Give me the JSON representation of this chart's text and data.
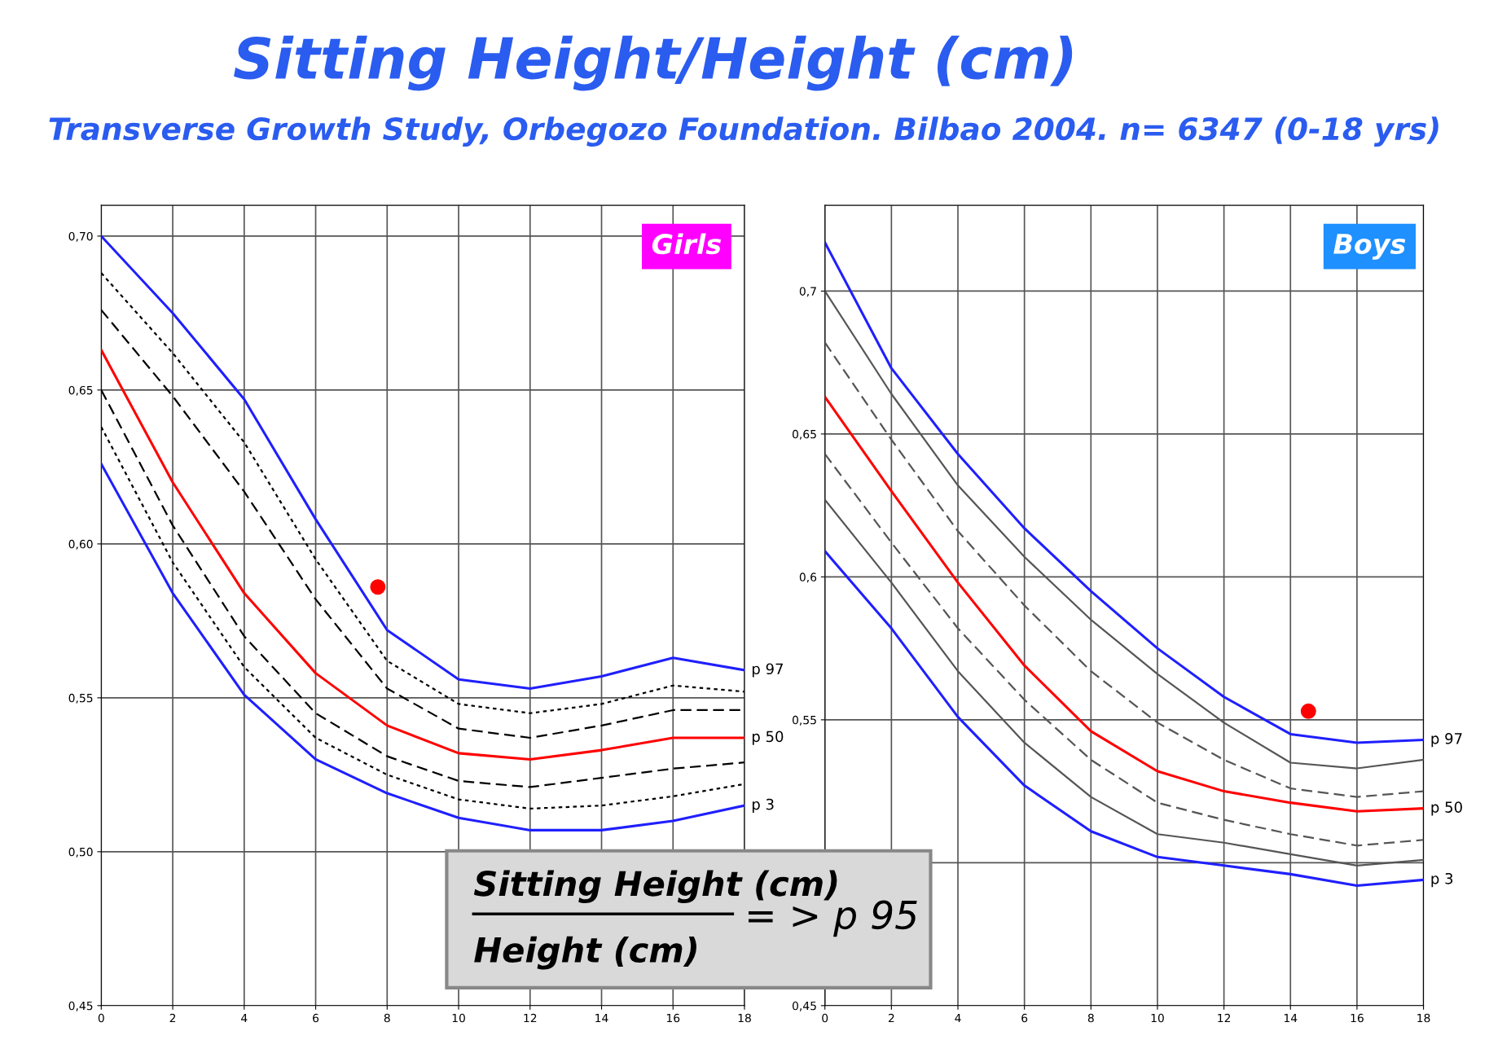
{
  "chart_data": [
    {
      "type": "line",
      "title": "Sitting Height/Height (cm)",
      "subtitle": "Transverse Growth Study, Orbegozo Foundation. Bilbao 2004. n= 6347 (0-18 yrs)",
      "x": [
        0,
        2,
        4,
        6,
        8,
        10,
        12,
        14,
        16,
        18
      ],
      "series": [
        {
          "name": "p 97",
          "color": "#1f1fff",
          "line_style": "solid",
          "values": [
            0.7,
            0.675,
            0.647,
            0.608,
            0.572,
            0.556,
            0.553,
            0.557,
            0.563,
            0.559
          ]
        },
        {
          "color": "#000000",
          "line_style": "dotted",
          "values": [
            0.688,
            0.662,
            0.633,
            0.595,
            0.562,
            0.548,
            0.545,
            0.548,
            0.554,
            0.552
          ]
        },
        {
          "color": "#000000",
          "line_style": "dashed",
          "values": [
            0.676,
            0.648,
            0.617,
            0.582,
            0.553,
            0.54,
            0.537,
            0.541,
            0.546,
            0.546
          ]
        },
        {
          "name": "p 50",
          "color": "#ff0000",
          "line_style": "solid",
          "values": [
            0.663,
            0.62,
            0.584,
            0.558,
            0.541,
            0.532,
            0.53,
            0.533,
            0.537,
            0.537
          ]
        },
        {
          "color": "#000000",
          "line_style": "dashed",
          "values": [
            0.65,
            0.606,
            0.57,
            0.545,
            0.531,
            0.523,
            0.521,
            0.524,
            0.527,
            0.529
          ]
        },
        {
          "color": "#000000",
          "line_style": "dotted",
          "values": [
            0.638,
            0.594,
            0.56,
            0.537,
            0.525,
            0.517,
            0.514,
            0.515,
            0.518,
            0.522
          ]
        },
        {
          "name": "p 3",
          "color": "#1f1fff",
          "line_style": "solid",
          "values": [
            0.626,
            0.584,
            0.551,
            0.53,
            0.519,
            0.511,
            0.507,
            0.507,
            0.51,
            0.515
          ]
        },
        {
          "type": "scatter",
          "color": "#ff0000",
          "marker": "circle",
          "x": [
            7.74
          ],
          "values": [
            0.586
          ]
        }
      ],
      "xlim": [
        0,
        18
      ],
      "xticks": [
        0,
        2,
        4,
        6,
        8,
        10,
        12,
        14,
        16,
        18
      ],
      "ylim": [
        0.45,
        0.71
      ],
      "yticks": [
        {
          "value": 0.45,
          "label": "0,45"
        },
        {
          "value": 0.5,
          "label": "0,50"
        },
        {
          "value": 0.55,
          "label": "0,55"
        },
        {
          "value": 0.6,
          "label": "0,60"
        },
        {
          "value": 0.65,
          "label": "0,65"
        },
        {
          "value": 0.7,
          "label": "0,70"
        }
      ],
      "grid": true,
      "annotations": [
        "Girls",
        "Sitting Height (cm)",
        "Height (cm)",
        "= > p 95"
      ]
    },
    {
      "type": "line",
      "x": [
        0,
        2,
        4,
        6,
        8,
        10,
        12,
        14,
        16,
        18
      ],
      "series": [
        {
          "name": "p 97",
          "color": "#1f1fff",
          "line_style": "solid",
          "values": [
            0.717,
            0.673,
            0.643,
            0.617,
            0.595,
            0.575,
            0.558,
            0.545,
            0.542,
            0.543
          ]
        },
        {
          "color": "#555555",
          "line_style": "solid",
          "values": [
            0.7,
            0.664,
            0.632,
            0.607,
            0.585,
            0.566,
            0.549,
            0.535,
            0.533,
            0.536
          ]
        },
        {
          "color": "#555555",
          "line_style": "dashed",
          "values": [
            0.682,
            0.648,
            0.616,
            0.59,
            0.567,
            0.549,
            0.536,
            0.526,
            0.523,
            0.525
          ]
        },
        {
          "name": "p 50",
          "color": "#ff0000",
          "line_style": "solid",
          "values": [
            0.663,
            0.63,
            0.598,
            0.569,
            0.546,
            0.532,
            0.525,
            0.521,
            0.518,
            0.519
          ]
        },
        {
          "color": "#555555",
          "line_style": "dashed",
          "values": [
            0.643,
            0.612,
            0.582,
            0.557,
            0.536,
            0.521,
            0.515,
            0.51,
            0.506,
            0.508
          ]
        },
        {
          "color": "#555555",
          "line_style": "solid",
          "values": [
            0.627,
            0.598,
            0.567,
            0.542,
            0.523,
            0.51,
            0.507,
            0.503,
            0.499,
            0.501
          ]
        },
        {
          "name": "p 3",
          "color": "#1f1fff",
          "line_style": "solid",
          "values": [
            0.609,
            0.582,
            0.551,
            0.527,
            0.511,
            0.502,
            0.499,
            0.496,
            0.492,
            0.494
          ]
        },
        {
          "type": "scatter",
          "color": "#ff0000",
          "marker": "circle",
          "x": [
            14.54
          ],
          "values": [
            0.553
          ]
        }
      ],
      "xlim": [
        0,
        18
      ],
      "xticks": [
        0,
        2,
        4,
        6,
        8,
        10,
        12,
        14,
        16,
        18
      ],
      "ylim": [
        0.45,
        0.73
      ],
      "yticks": [
        {
          "value": 0.45,
          "label": "0,45"
        },
        {
          "value": 0.5,
          "label": null
        },
        {
          "value": 0.55,
          "label": "0,55"
        },
        {
          "value": 0.6,
          "label": "0,6"
        },
        {
          "value": 0.65,
          "label": "0,65"
        },
        {
          "value": 0.7,
          "label": "0,7"
        }
      ],
      "grid": true,
      "annotations": [
        "Boys"
      ]
    }
  ]
}
